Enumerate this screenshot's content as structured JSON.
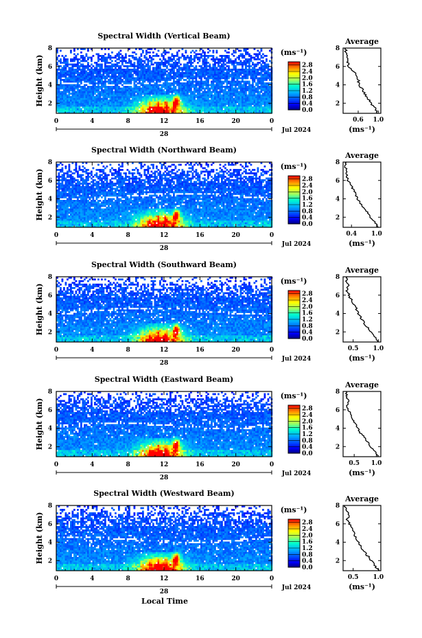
{
  "figure": {
    "xlabel": "Local Time",
    "date_label": "Jul 2024",
    "day_label": "28",
    "unit_label": "(ms⁻¹)",
    "avg_title": "Average",
    "ylabel": "Height (km)"
  },
  "chart_data": [
    {
      "type": "heatmap",
      "title": "Spectral Width (Vertical Beam)",
      "ylabel": "Height (km)",
      "xlabel": "",
      "xlim": [
        0,
        24
      ],
      "ylim": [
        0.9,
        8
      ],
      "xticks": [
        "0",
        "4",
        "8",
        "12",
        "16",
        "20",
        "0"
      ],
      "yticks": [
        "2",
        "4",
        "6",
        "8"
      ],
      "colorbar": {
        "ticks": [
          "0.0",
          "0.4",
          "0.8",
          "1.2",
          "1.6",
          "2.0",
          "2.4",
          "2.8"
        ],
        "range": [
          0,
          3
        ]
      },
      "average_profile": {
        "title": "Average",
        "xlabel": "(ms⁻¹)",
        "xlim": [
          0.3,
          1.05
        ],
        "xticks": [
          "0.6",
          "1.0"
        ],
        "yticks": [
          "2",
          "4",
          "6",
          "8"
        ],
        "heights": [
          0.9,
          1.5,
          2.0,
          2.5,
          3.0,
          3.5,
          4.0,
          4.5,
          5.0,
          5.5,
          6.0,
          6.5,
          7.0,
          7.5,
          8.0
        ],
        "values": [
          1.0,
          0.93,
          0.85,
          0.8,
          0.74,
          0.68,
          0.63,
          0.6,
          0.57,
          0.5,
          0.42,
          0.38,
          0.4,
          0.35,
          0.36
        ]
      }
    },
    {
      "type": "heatmap",
      "title": "Spectral Width (Northward Beam)",
      "ylabel": "Height (km)",
      "xlabel": "",
      "xlim": [
        0,
        24
      ],
      "ylim": [
        0.9,
        8
      ],
      "xticks": [
        "0",
        "4",
        "8",
        "12",
        "16",
        "20",
        "0"
      ],
      "yticks": [
        "2",
        "4",
        "6",
        "8"
      ],
      "colorbar": {
        "ticks": [
          "0.0",
          "0.4",
          "0.8",
          "1.2",
          "1.6",
          "2.0",
          "2.4",
          "2.8"
        ],
        "range": [
          0,
          3
        ]
      },
      "average_profile": {
        "title": "Average",
        "xlabel": "(ms⁻¹)",
        "xlim": [
          0.2,
          1.1
        ],
        "xticks": [
          "0.4",
          "1.0"
        ],
        "yticks": [
          "2",
          "4",
          "6",
          "8"
        ],
        "heights": [
          0.9,
          1.5,
          2.0,
          2.5,
          3.0,
          3.5,
          4.0,
          4.5,
          5.0,
          5.5,
          6.0,
          6.5,
          7.0,
          7.5,
          8.0
        ],
        "values": [
          1.05,
          0.95,
          0.85,
          0.78,
          0.7,
          0.62,
          0.55,
          0.5,
          0.45,
          0.38,
          0.32,
          0.28,
          0.3,
          0.25,
          0.26
        ]
      }
    },
    {
      "type": "heatmap",
      "title": "Spectral Width (Southward Beam)",
      "ylabel": "Height (km)",
      "xlabel": "",
      "xlim": [
        0,
        24
      ],
      "ylim": [
        0.9,
        8
      ],
      "xticks": [
        "0",
        "4",
        "8",
        "12",
        "16",
        "20",
        "0"
      ],
      "yticks": [
        "2",
        "4",
        "6",
        "8"
      ],
      "colorbar": {
        "ticks": [
          "0.0",
          "0.4",
          "0.8",
          "1.2",
          "1.6",
          "2.0",
          "2.4",
          "2.8"
        ],
        "range": [
          0,
          3
        ]
      },
      "average_profile": {
        "title": "Average",
        "xlabel": "(ms⁻¹)",
        "xlim": [
          0.3,
          1.05
        ],
        "xticks": [
          "0.5",
          "1.0"
        ],
        "yticks": [
          "2",
          "4",
          "6",
          "8"
        ],
        "heights": [
          0.9,
          1.5,
          2.0,
          2.5,
          3.0,
          3.5,
          4.0,
          4.5,
          5.0,
          5.5,
          6.0,
          6.5,
          7.0,
          7.5,
          8.0
        ],
        "values": [
          1.0,
          0.92,
          0.85,
          0.78,
          0.72,
          0.66,
          0.6,
          0.56,
          0.52,
          0.46,
          0.42,
          0.38,
          0.41,
          0.36,
          0.37
        ]
      }
    },
    {
      "type": "heatmap",
      "title": "Spectral Width (Eastward Beam)",
      "ylabel": "Height (km)",
      "xlabel": "",
      "xlim": [
        0,
        24
      ],
      "ylim": [
        0.9,
        8
      ],
      "xticks": [
        "0",
        "4",
        "8",
        "12",
        "16",
        "20",
        "0"
      ],
      "yticks": [
        "2",
        "4",
        "6",
        "8"
      ],
      "colorbar": {
        "ticks": [
          "0.0",
          "0.4",
          "0.8",
          "1.2",
          "1.6",
          "2.0",
          "2.4",
          "2.8"
        ],
        "range": [
          0,
          3
        ]
      },
      "average_profile": {
        "title": "Average",
        "xlabel": "(ms⁻¹)",
        "xlim": [
          0.25,
          1.1
        ],
        "xticks": [
          "0.5",
          "1.0"
        ],
        "yticks": [
          "2",
          "4",
          "6",
          "8"
        ],
        "heights": [
          0.9,
          1.5,
          2.0,
          2.5,
          3.0,
          3.5,
          4.0,
          4.5,
          5.0,
          5.5,
          6.0,
          6.5,
          7.0,
          7.5,
          8.0
        ],
        "values": [
          1.05,
          0.95,
          0.86,
          0.8,
          0.72,
          0.64,
          0.58,
          0.52,
          0.48,
          0.42,
          0.37,
          0.33,
          0.37,
          0.32,
          0.34
        ]
      }
    },
    {
      "type": "heatmap",
      "title": "Spectral Width (Westward Beam)",
      "ylabel": "Height (km)",
      "xlabel": "Local Time",
      "xlim": [
        0,
        24
      ],
      "ylim": [
        0.9,
        8
      ],
      "xticks": [
        "0",
        "4",
        "8",
        "12",
        "16",
        "20",
        "0"
      ],
      "yticks": [
        "2",
        "4",
        "6",
        "8"
      ],
      "colorbar": {
        "ticks": [
          "0.0",
          "0.4",
          "0.8",
          "1.2",
          "1.6",
          "2.0",
          "2.4",
          "2.8"
        ],
        "range": [
          0,
          3
        ]
      },
      "average_profile": {
        "title": "Average",
        "xlabel": "(ms⁻¹)",
        "xlim": [
          0.3,
          1.05
        ],
        "xticks": [
          "0.5",
          "1.0"
        ],
        "yticks": [
          "2",
          "4",
          "6",
          "8"
        ],
        "heights": [
          0.9,
          1.5,
          2.0,
          2.5,
          3.0,
          3.5,
          4.0,
          4.5,
          5.0,
          5.5,
          6.0,
          6.5,
          7.0,
          7.5,
          8.0
        ],
        "values": [
          1.0,
          0.93,
          0.86,
          0.79,
          0.72,
          0.66,
          0.6,
          0.55,
          0.52,
          0.47,
          0.43,
          0.38,
          0.42,
          0.35,
          0.34
        ]
      }
    }
  ],
  "colors": {
    "jet": [
      "#000080",
      "#0000ff",
      "#0080ff",
      "#00ffff",
      "#80ff80",
      "#ffff00",
      "#ff8000",
      "#ff0000",
      "#800000"
    ],
    "axis": "#000000"
  }
}
